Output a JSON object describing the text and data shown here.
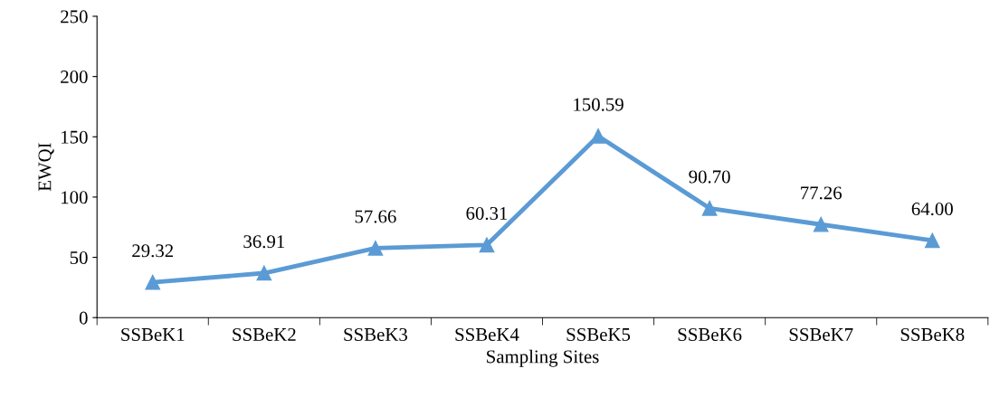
{
  "chart_data": {
    "type": "line",
    "xlabel": "Sampling Sites",
    "ylabel": "EWQI",
    "categories": [
      "SSBeK1",
      "SSBeK2",
      "SSBeK3",
      "SSBeK4",
      "SSBeK5",
      "SSBeK6",
      "SSBeK7",
      "SSBeK8"
    ],
    "series": [
      {
        "color": "#5b9bd5",
        "values": [
          29.32,
          36.91,
          57.66,
          60.31,
          150.59,
          90.7,
          77.26,
          64.0
        ],
        "value_labels": [
          "29.32",
          "36.91",
          "57.66",
          "60.31",
          "150.59",
          "90.70",
          "77.26",
          "64.00"
        ]
      }
    ],
    "ylim": [
      0,
      250
    ],
    "yticks": [
      0,
      50,
      100,
      150,
      200,
      250
    ],
    "grid": false,
    "legend": false,
    "marker": "triangle",
    "line_style": "solid"
  }
}
